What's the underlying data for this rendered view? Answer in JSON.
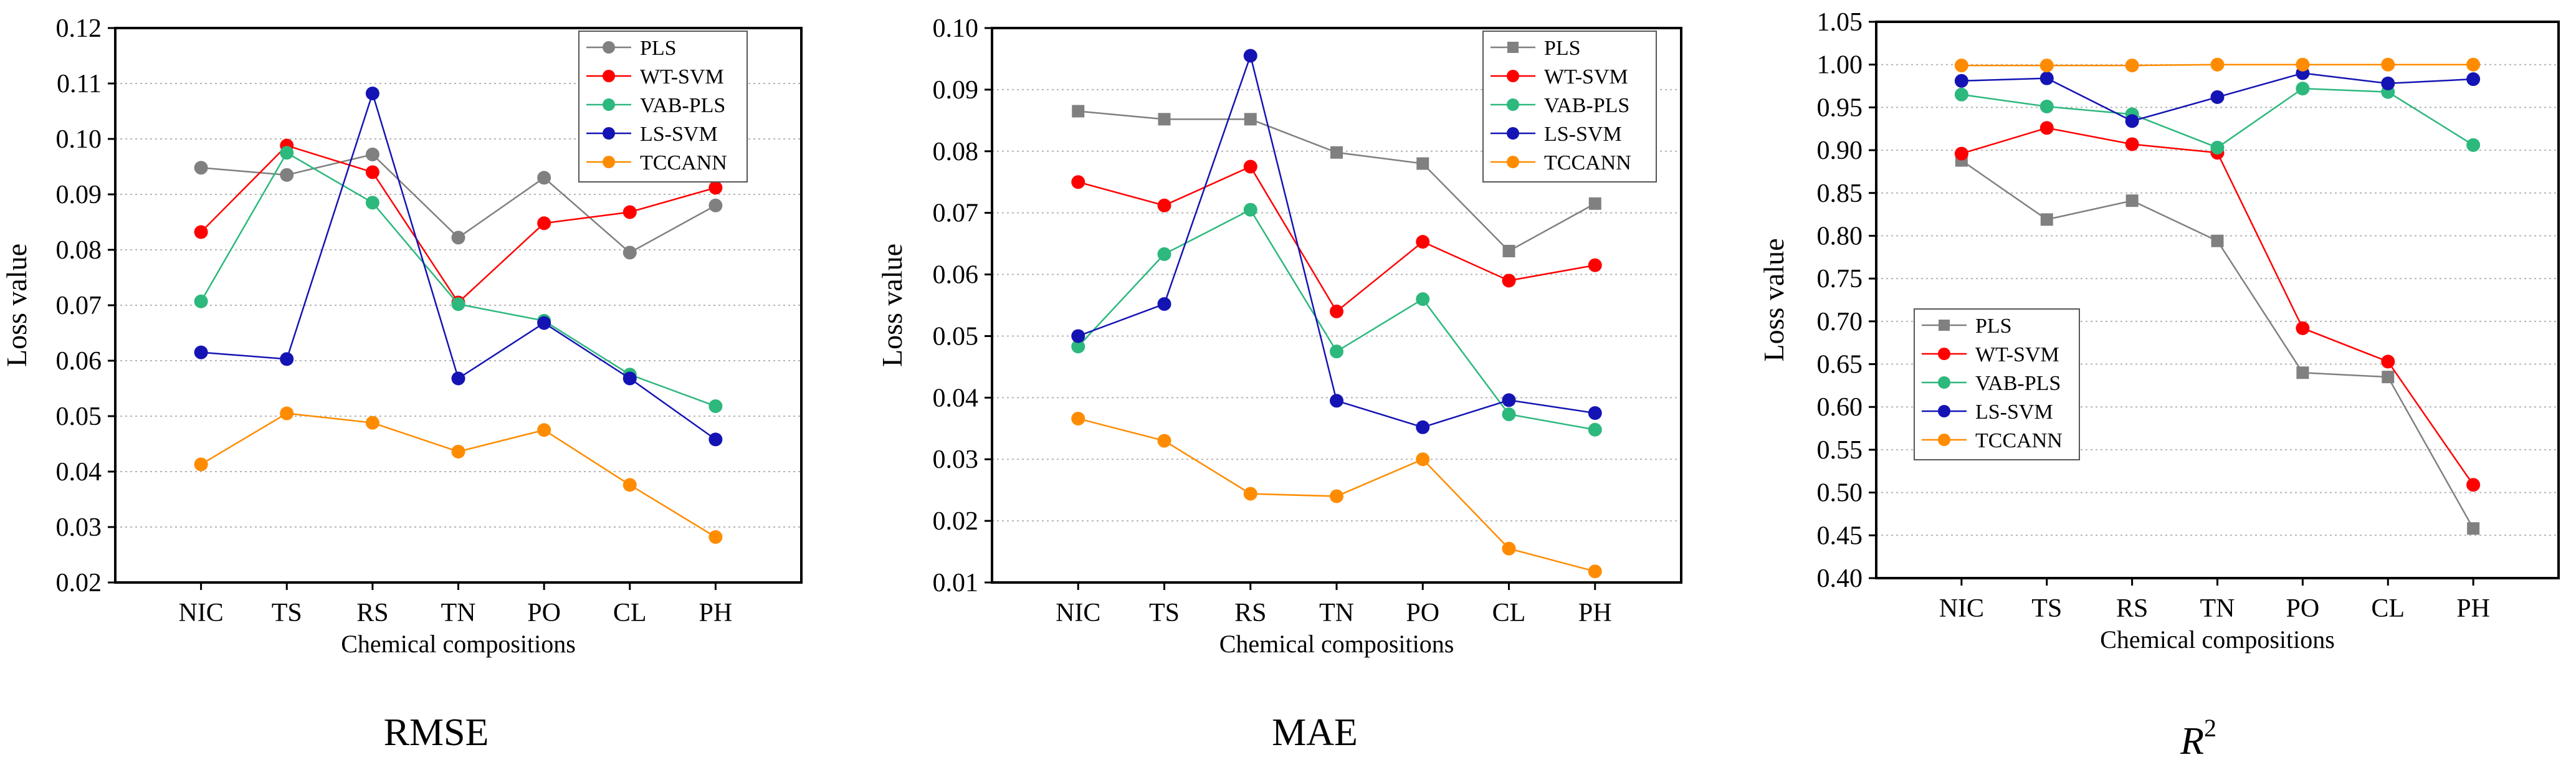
{
  "chart_data": [
    {
      "id": "rmse",
      "type": "line",
      "caption": "RMSE",
      "xlabel": "Chemical compositions",
      "ylabel": "Loss value",
      "categories": [
        "NIC",
        "TS",
        "RS",
        "TN",
        "PO",
        "CL",
        "PH"
      ],
      "ylim": [
        0.02,
        0.12
      ],
      "yticks": [
        "0.02",
        "0.03",
        "0.04",
        "0.05",
        "0.06",
        "0.07",
        "0.08",
        "0.09",
        "0.10",
        "0.11",
        "0.12"
      ],
      "grid": "horizontal-dotted",
      "legend_position": "top-right",
      "series": [
        {
          "name": "PLS",
          "color": "#808080",
          "values": [
            0.0948,
            0.0935,
            0.0972,
            0.0822,
            0.093,
            0.0795,
            0.088
          ],
          "marker": "circle"
        },
        {
          "name": "WT-SVM",
          "color": "#ff0000",
          "values": [
            0.0832,
            0.0988,
            0.094,
            0.0705,
            0.0848,
            0.0868,
            0.0912
          ],
          "marker": "circle"
        },
        {
          "name": "VAB-PLS",
          "color": "#2db87d",
          "values": [
            0.0707,
            0.0975,
            0.0885,
            0.0702,
            0.0672,
            0.0575,
            0.0518
          ],
          "marker": "circle"
        },
        {
          "name": "LS-SVM",
          "color": "#1414b4",
          "values": [
            0.0615,
            0.0603,
            0.1082,
            0.0568,
            0.0668,
            0.0568,
            0.0458
          ],
          "marker": "circle"
        },
        {
          "name": "TCCANN",
          "color": "#ff8c00",
          "values": [
            0.0413,
            0.0505,
            0.0488,
            0.0436,
            0.0475,
            0.0376,
            0.0282
          ],
          "marker": "circle"
        }
      ]
    },
    {
      "id": "mae",
      "type": "line",
      "caption": "MAE",
      "xlabel": "Chemical compositions",
      "ylabel": "Loss value",
      "categories": [
        "NIC",
        "TS",
        "RS",
        "TN",
        "PO",
        "CL",
        "PH"
      ],
      "ylim": [
        0.01,
        0.1
      ],
      "yticks": [
        "0.01",
        "0.02",
        "0.03",
        "0.04",
        "0.05",
        "0.06",
        "0.07",
        "0.08",
        "0.09",
        "0.10"
      ],
      "grid": "horizontal-dotted",
      "legend_position": "top-right",
      "series": [
        {
          "name": "PLS",
          "color": "#808080",
          "values": [
            0.0865,
            0.0852,
            0.0852,
            0.0798,
            0.078,
            0.0638,
            0.0715
          ],
          "marker": "square"
        },
        {
          "name": "WT-SVM",
          "color": "#ff0000",
          "values": [
            0.075,
            0.0712,
            0.0775,
            0.054,
            0.0653,
            0.059,
            0.0615
          ],
          "marker": "circle"
        },
        {
          "name": "VAB-PLS",
          "color": "#2db87d",
          "values": [
            0.0483,
            0.0633,
            0.0705,
            0.0475,
            0.056,
            0.0373,
            0.0348
          ],
          "marker": "circle"
        },
        {
          "name": "LS-SVM",
          "color": "#1414b4",
          "values": [
            0.05,
            0.0552,
            0.0955,
            0.0395,
            0.0352,
            0.0396,
            0.0375
          ],
          "marker": "circle"
        },
        {
          "name": "TCCANN",
          "color": "#ff8c00",
          "values": [
            0.0366,
            0.033,
            0.0244,
            0.024,
            0.03,
            0.0155,
            0.0118
          ],
          "marker": "circle"
        }
      ]
    },
    {
      "id": "r2",
      "type": "line",
      "caption": "R",
      "caption_superscript": "2",
      "xlabel": "Chemical compositions",
      "ylabel": "Loss value",
      "categories": [
        "NIC",
        "TS",
        "RS",
        "TN",
        "PO",
        "CL",
        "PH"
      ],
      "ylim": [
        0.4,
        1.05
      ],
      "yticks": [
        "0.40",
        "0.45",
        "0.50",
        "0.55",
        "0.60",
        "0.65",
        "0.70",
        "0.75",
        "0.80",
        "0.85",
        "0.90",
        "0.95",
        "1.00",
        "1.05"
      ],
      "grid": "horizontal-dotted",
      "legend_position": "bottom-left",
      "series": [
        {
          "name": "PLS",
          "color": "#808080",
          "values": [
            0.888,
            0.819,
            0.841,
            0.794,
            0.64,
            0.635,
            0.458
          ],
          "marker": "square"
        },
        {
          "name": "WT-SVM",
          "color": "#ff0000",
          "values": [
            0.896,
            0.926,
            0.907,
            0.897,
            0.692,
            0.653,
            0.509
          ],
          "marker": "circle"
        },
        {
          "name": "VAB-PLS",
          "color": "#2db87d",
          "values": [
            0.965,
            0.951,
            0.942,
            0.903,
            0.972,
            0.968,
            0.906
          ],
          "marker": "circle"
        },
        {
          "name": "LS-SVM",
          "color": "#1414b4",
          "values": [
            0.981,
            0.984,
            0.934,
            0.962,
            0.99,
            0.978,
            0.983
          ],
          "marker": "circle"
        },
        {
          "name": "TCCANN",
          "color": "#ff8c00",
          "values": [
            0.999,
            0.999,
            0.999,
            1.0,
            1.0,
            1.0,
            1.0
          ],
          "marker": "circle"
        }
      ]
    }
  ]
}
